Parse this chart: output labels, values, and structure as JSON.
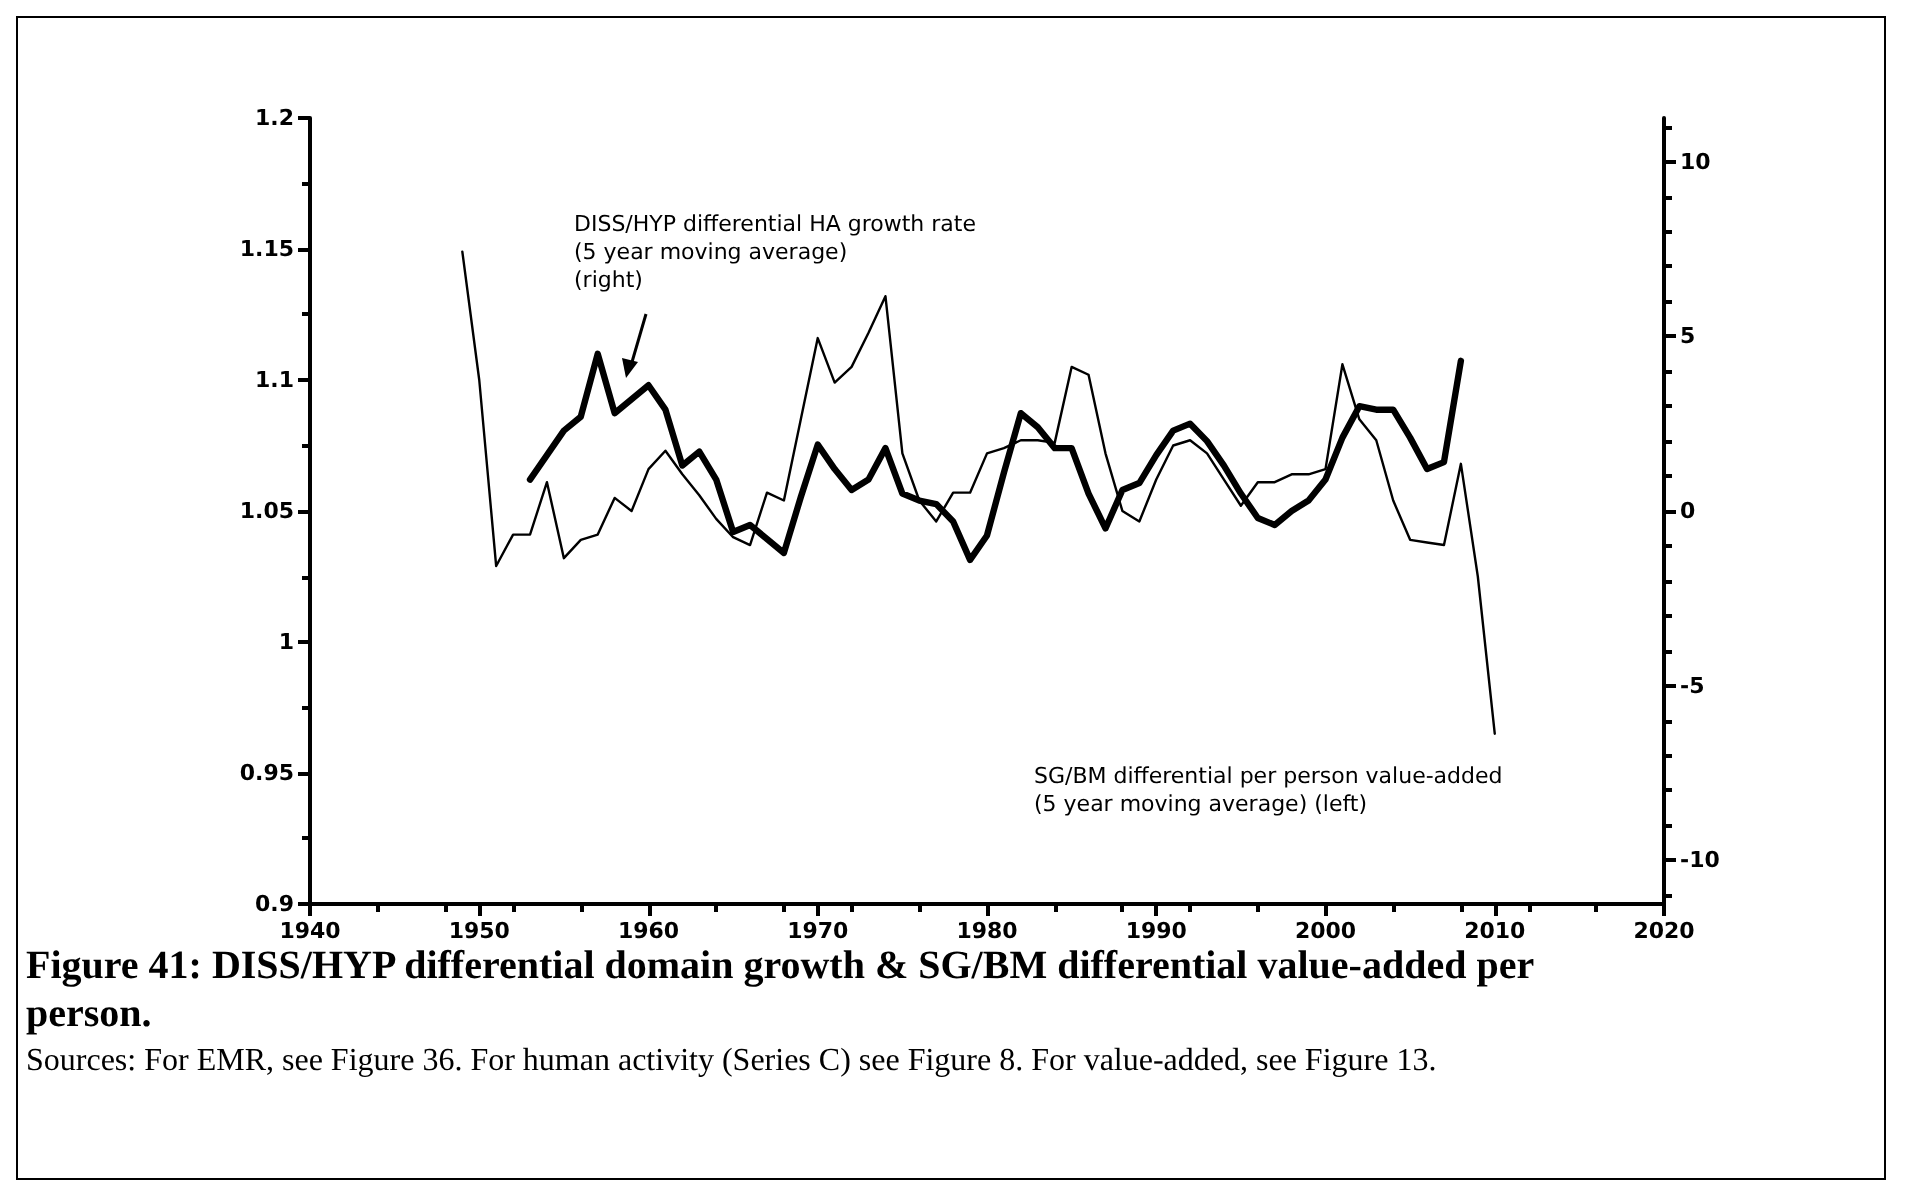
{
  "chart_data": {
    "type": "line",
    "title": "Figure 41: DISS/HYP differential domain growth & SG/BM differential value-added per person.",
    "annotations": [
      "DISS/HYP differential HA growth rate\n(5 year moving average)\n(right)",
      "SG/BM differential per person value-added\n(5 year moving average) (left)",
      "Sources: For EMR, see Figure 36. For human activity (Series C) see Figure 8. For value-added, see Figure 13."
    ],
    "xlim": [
      1940,
      2020
    ],
    "xticks": [
      1940,
      1950,
      1960,
      1970,
      1980,
      1990,
      2000,
      2010,
      2020
    ],
    "ylim": [
      0.9,
      1.2
    ],
    "yticks": [
      0.9,
      0.95,
      1,
      1.05,
      1.1,
      1.15,
      1.2
    ],
    "y2lim": [
      -11.25,
      11.25
    ],
    "y2ticks": [
      -10,
      -5,
      0,
      5,
      10
    ],
    "grid": false,
    "marker": "none",
    "line_style": "solid",
    "series": [
      {
        "color": "#000000",
        "x": [
          1949,
          1950,
          1951,
          1952,
          1953,
          1954,
          1955,
          1956,
          1957,
          1958,
          1959,
          1960,
          1961,
          1962,
          1963,
          1964,
          1965,
          1966,
          1967,
          1968,
          1969,
          1970,
          1971,
          1972,
          1973,
          1974,
          1975,
          1976,
          1977,
          1978,
          1979,
          1980,
          1981,
          1982,
          1983,
          1984,
          1985,
          1986,
          1987,
          1988,
          1989,
          1990,
          1991,
          1992,
          1993,
          1994,
          1995,
          1996,
          1997,
          1998,
          1999,
          2000,
          2001,
          2002,
          2003,
          2004,
          2005,
          2006,
          2007,
          2008,
          2009,
          2010
        ],
        "values": [
          1.149,
          1.1,
          1.029,
          1.041,
          1.041,
          1.061,
          1.032,
          1.039,
          1.041,
          1.055,
          1.05,
          1.066,
          1.073,
          1.064,
          1.056,
          1.047,
          1.04,
          1.037,
          1.057,
          1.054,
          1.085,
          1.116,
          1.099,
          1.105,
          1.118,
          1.132,
          1.072,
          1.054,
          1.046,
          1.057,
          1.057,
          1.072,
          1.074,
          1.077,
          1.077,
          1.076,
          1.105,
          1.102,
          1.072,
          1.05,
          1.046,
          1.062,
          1.075,
          1.077,
          1.072,
          1.062,
          1.052,
          1.061,
          1.061,
          1.064,
          1.064,
          1.066,
          1.106,
          1.085,
          1.077,
          1.054,
          1.039,
          1.038,
          1.037,
          1.068,
          1.025,
          0.965
        ]
      },
      {
        "color": "#000000",
        "axis": "y2",
        "x": [
          1953,
          1954,
          1955,
          1956,
          1957,
          1958,
          1959,
          1960,
          1961,
          1962,
          1963,
          1964,
          1965,
          1966,
          1967,
          1968,
          1969,
          1970,
          1971,
          1972,
          1973,
          1974,
          1975,
          1976,
          1977,
          1978,
          1979,
          1980,
          1981,
          1982,
          1983,
          1984,
          1985,
          1986,
          1987,
          1988,
          1989,
          1990,
          1991,
          1992,
          1993,
          1994,
          1995,
          1996,
          1997,
          1998,
          1999,
          2000,
          2001,
          2002,
          2003,
          2004,
          2005,
          2006,
          2007,
          2008
        ],
        "values": [
          0.9,
          1.6,
          2.3,
          2.7,
          4.5,
          2.8,
          3.2,
          3.6,
          2.9,
          1.3,
          1.7,
          0.9,
          -0.6,
          -0.4,
          -0.8,
          -1.2,
          0.4,
          1.9,
          1.2,
          0.6,
          0.9,
          1.8,
          0.5,
          0.3,
          0.2,
          -0.3,
          -1.4,
          -0.7,
          1.1,
          2.8,
          2.4,
          1.8,
          1.8,
          0.5,
          -0.5,
          0.6,
          0.8,
          1.6,
          2.3,
          2.5,
          2,
          1.3,
          0.5,
          -0.2,
          -0.4,
          0,
          0.3,
          0.9,
          2.1,
          3,
          2.9,
          2.9,
          2.1,
          1.2,
          1.4,
          4.3
        ]
      }
    ]
  }
}
